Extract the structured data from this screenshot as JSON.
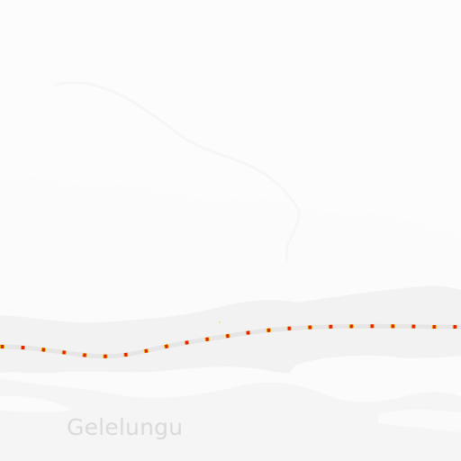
{
  "map": {
    "style": "light terrain basemap, nearly monochrome",
    "colors": {
      "background": "#fbfbfb",
      "terrain_shade": "#f0f0f0",
      "terrain_light": "#f4f4f4",
      "road_casing": "#e8e8e8",
      "rail_red": "#e02000",
      "rail_orange": "#f0b000",
      "label_text": "#dadada"
    },
    "features": {
      "railway": {
        "kind": "dashed railway line",
        "icon": "railway-line"
      }
    },
    "labels": {
      "place": "Gelelungu"
    }
  }
}
